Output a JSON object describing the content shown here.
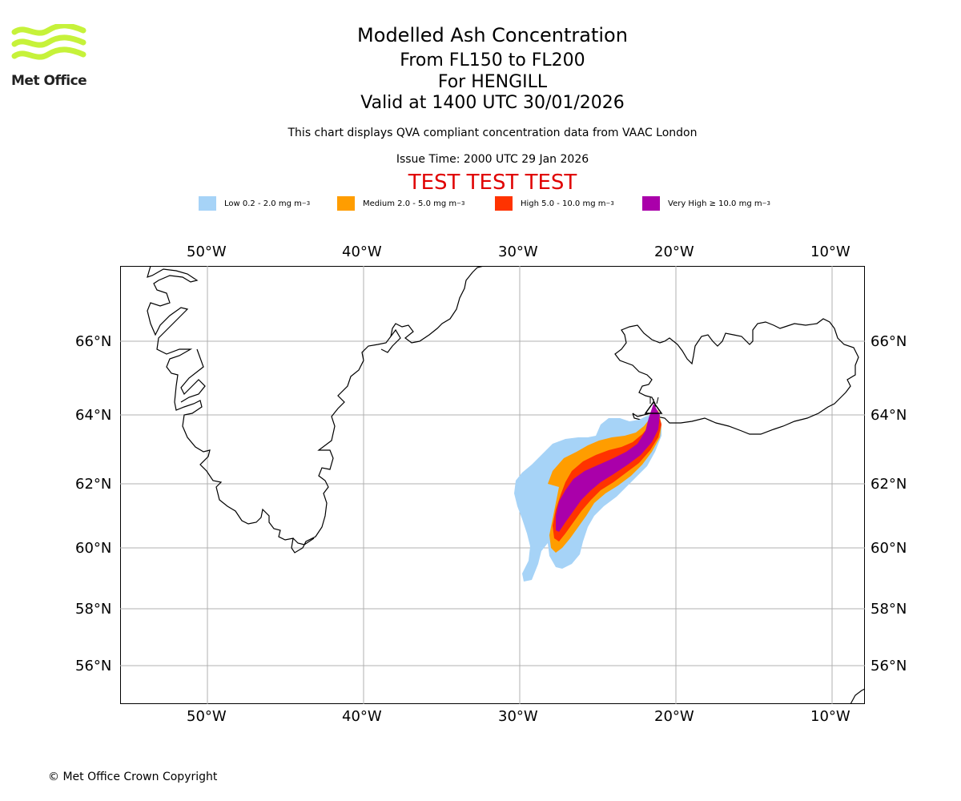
{
  "logo": {
    "text": "Met Office",
    "accent": "#c6f23a"
  },
  "title": {
    "line1": "Modelled Ash Concentration",
    "line2": "From FL150 to FL200",
    "line3": "For HENGILL",
    "line4": "Valid at 1400 UTC 30/01/2026"
  },
  "subtitle": {
    "compliance": "This chart displays QVA compliant concentration data from VAAC London",
    "issue_time": "Issue Time: 2000 UTC 29 Jan 2026",
    "test_banner": "TEST TEST TEST"
  },
  "legend": [
    {
      "label": "Low 0.2 - 2.0 mg m",
      "sup": "−3",
      "color": "#a6d3f7"
    },
    {
      "label": "Medium 2.0 - 5.0 mg m",
      "sup": "−3",
      "color": "#ff9d00"
    },
    {
      "label": "High 5.0 - 10.0 mg m",
      "sup": "−3",
      "color": "#ff3300"
    },
    {
      "label": "Very High  ≥  10.0 mg m",
      "sup": "−3",
      "color": "#aa00aa"
    }
  ],
  "axes": {
    "longitude_labels": [
      "50°W",
      "40°W",
      "30°W",
      "20°W",
      "10°W"
    ],
    "latitude_labels": [
      "66°N",
      "64°N",
      "62°N",
      "60°N",
      "58°N",
      "56°N"
    ]
  },
  "map": {
    "volcano": "HENGILL",
    "volcano_icon": "triangle-volcano-icon",
    "land_outline_color": "#000000",
    "grid_color": "#b0b0b0"
  },
  "footer": {
    "copyright": "© Met Office Crown Copyright"
  }
}
